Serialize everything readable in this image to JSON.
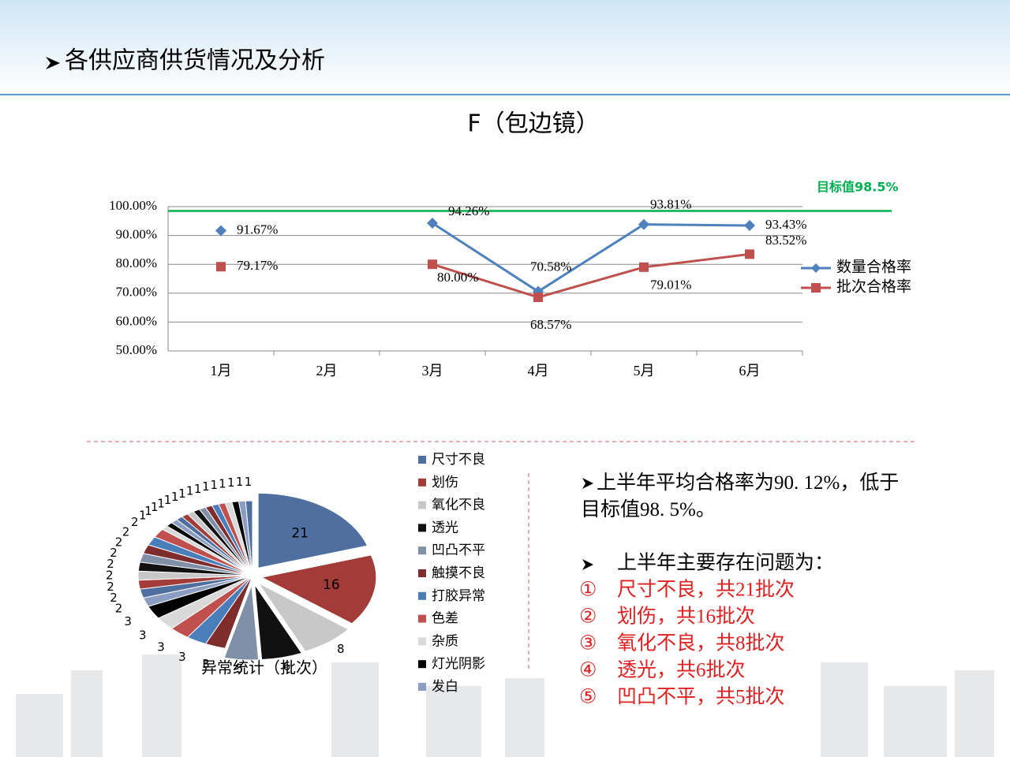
{
  "header": {
    "title": "各供应商供货情况及分析"
  },
  "chart_data": [
    {
      "type": "line",
      "title": "F（包边镜）",
      "categories": [
        "1月",
        "2月",
        "3月",
        "4月",
        "5月",
        "6月"
      ],
      "series": [
        {
          "name": "数量合格率",
          "color": "#4f81bd",
          "values": [
            91.67,
            null,
            94.26,
            70.58,
            93.81,
            93.43
          ],
          "value_labels": [
            "91.67%",
            null,
            "94.26%",
            "70.58%",
            "93.81%",
            "93.43%"
          ]
        },
        {
          "name": "批次合格率",
          "color": "#c0504d",
          "values": [
            79.17,
            null,
            80.0,
            68.57,
            79.01,
            83.52
          ],
          "value_labels": [
            "79.17%",
            null,
            "80.00%",
            "68.57%",
            "79.01%",
            "83.52%"
          ]
        }
      ],
      "ylim": [
        50,
        100
      ],
      "yticks": [
        {
          "value": 50,
          "label": "50.00%"
        },
        {
          "value": 60,
          "label": "60.00%"
        },
        {
          "value": 70,
          "label": "70.00%"
        },
        {
          "value": 80,
          "label": "80.00%"
        },
        {
          "value": 90,
          "label": "90.00%"
        },
        {
          "value": 100,
          "label": "100.00%"
        }
      ],
      "target": {
        "value": 98.5,
        "label": "目标值98.5%",
        "color": "#00b050"
      },
      "grid": true,
      "legend": "right"
    },
    {
      "type": "pie",
      "title": "异常统计（批次）",
      "categories": [
        "尺寸不良",
        "划伤",
        "氧化不良",
        "透光",
        "凹凸不平",
        "触摸不良",
        "打胶异常",
        "色差",
        "杂质",
        "灯光阴影",
        "发白",
        null,
        null,
        null,
        null,
        null,
        null,
        null,
        null,
        null,
        null,
        null,
        null,
        null,
        null,
        null,
        null,
        null,
        null,
        null,
        null,
        null,
        null,
        null
      ],
      "values": [
        21,
        16,
        8,
        6,
        5,
        3,
        3,
        3,
        3,
        3,
        2,
        2,
        2,
        2,
        2,
        2,
        2,
        2,
        2,
        1,
        1,
        1,
        1,
        1,
        1,
        1,
        1,
        1,
        1,
        1,
        1,
        1,
        1,
        1
      ],
      "colors": [
        "#4f6fa0",
        "#a33b38",
        "#c8c8c8",
        "#111111",
        "#8090a8",
        "#7e2c2c",
        "#4a7ebb",
        "#c0504d",
        "#d9d9d9",
        "#000000",
        "#8b9dc3"
      ],
      "legend": "right"
    }
  ],
  "notes": {
    "summary": "上半年平均合格率为90. 12%，低于目标值98. 5%。",
    "issues_title": "上半年主要存在问题为：",
    "issues": [
      {
        "marker": "①",
        "text": "尺寸不良，共21批次"
      },
      {
        "marker": "②",
        "text": "划伤，共16批次"
      },
      {
        "marker": "③",
        "text": "氧化不良，共8批次"
      },
      {
        "marker": "④",
        "text": "透光，共6批次"
      },
      {
        "marker": "⑤",
        "text": "凹凸不平，共5批次"
      }
    ]
  }
}
